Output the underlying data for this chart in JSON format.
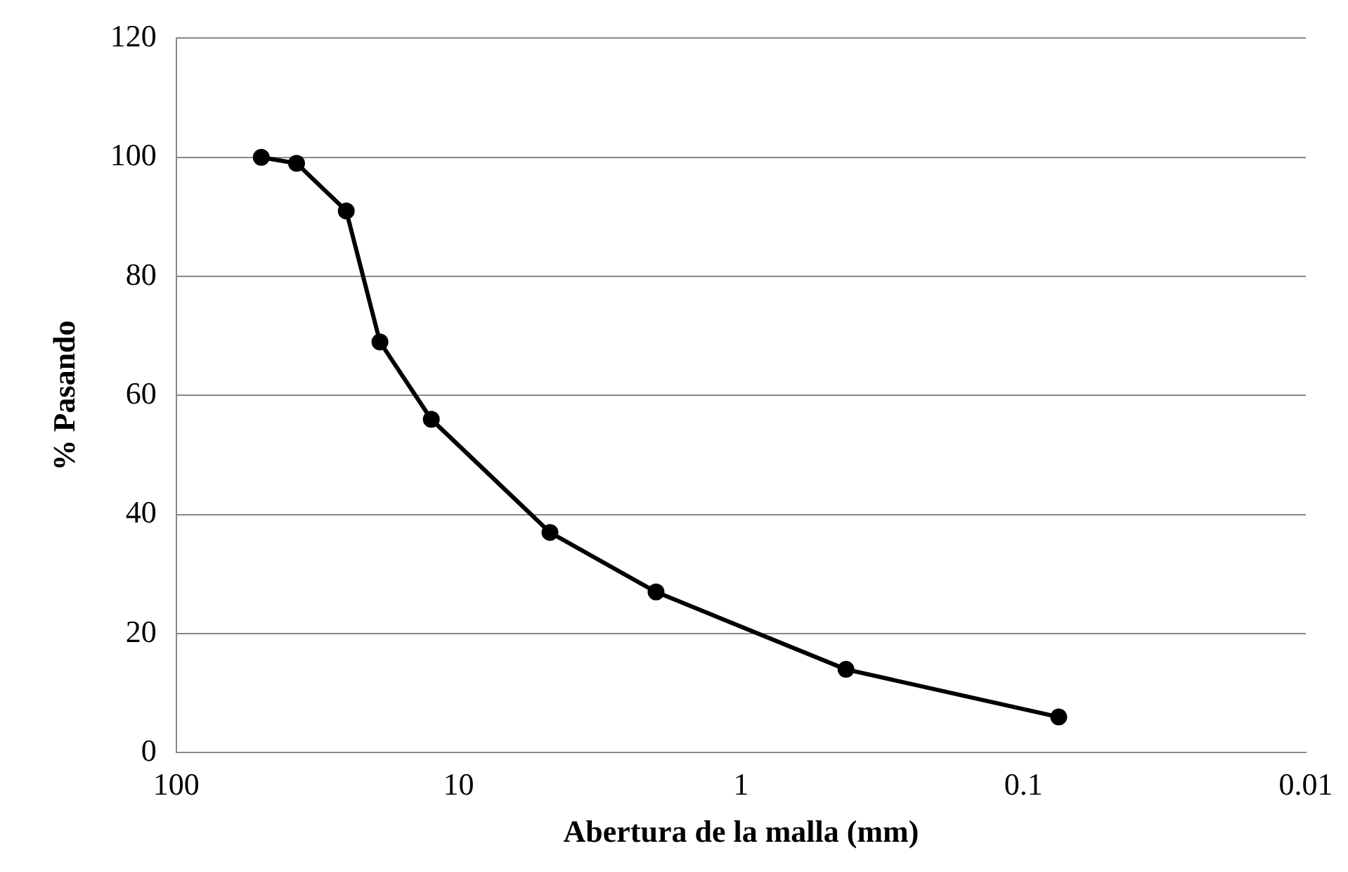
{
  "chart_data": {
    "type": "line",
    "xlabel": "Abertura de la malla (mm)",
    "ylabel": "% Pasando",
    "x": [
      50,
      37.5,
      25,
      19,
      12.5,
      4.75,
      2,
      0.425,
      0.075
    ],
    "series": [
      {
        "color": "#000000",
        "values": [
          100,
          99,
          91,
          69,
          56,
          37,
          27,
          14,
          6
        ]
      }
    ],
    "log": "x",
    "xlim": [
      100,
      0.01
    ],
    "xticks": [
      100,
      10,
      1,
      0.1,
      0.01
    ],
    "ylim": [
      0,
      120
    ],
    "yticks": [
      0,
      20,
      40,
      60,
      80,
      100,
      120
    ],
    "grid": "y",
    "legend": false,
    "marker": "circle",
    "line_style": "solid"
  }
}
